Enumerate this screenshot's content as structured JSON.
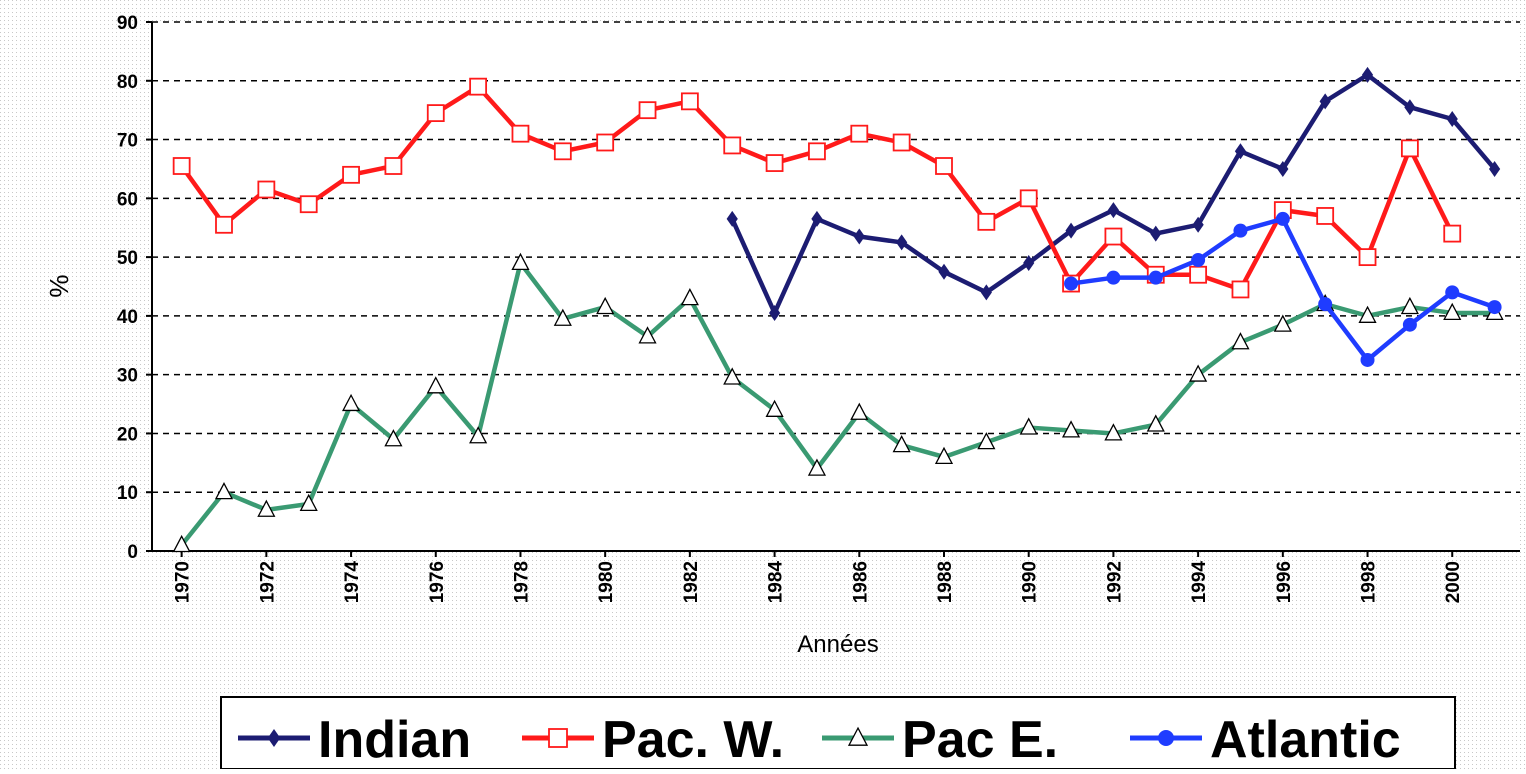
{
  "chart_data": {
    "type": "line",
    "x_label": "Années",
    "y_label": "%",
    "x": [
      1970,
      1971,
      1972,
      1973,
      1974,
      1975,
      1976,
      1977,
      1978,
      1979,
      1980,
      1981,
      1982,
      1983,
      1984,
      1985,
      1986,
      1987,
      1988,
      1989,
      1990,
      1991,
      1992,
      1993,
      1994,
      1995,
      1996,
      1997,
      1998,
      1999,
      2000,
      2001
    ],
    "xlim": [
      1969.3,
      2001.6
    ],
    "xticks": [
      1970,
      1972,
      1974,
      1976,
      1978,
      1980,
      1982,
      1984,
      1986,
      1988,
      1990,
      1992,
      1994,
      1996,
      1998,
      2000
    ],
    "ylim": [
      0,
      90
    ],
    "yticks": [
      0,
      10,
      20,
      30,
      40,
      50,
      60,
      70,
      80,
      90
    ],
    "grid": true,
    "legend": "bottom",
    "series": [
      {
        "name": "Indian",
        "color": "#1c1c72",
        "marker": "diamond",
        "values": [
          null,
          null,
          null,
          null,
          null,
          null,
          null,
          null,
          null,
          null,
          null,
          null,
          null,
          56.5,
          40.5,
          56.5,
          53.5,
          52.5,
          47.5,
          44,
          49,
          54.5,
          58,
          54,
          55.5,
          68,
          65,
          76.5,
          81,
          75.5,
          73.5,
          65
        ]
      },
      {
        "name": "Pac. W.",
        "color": "#ff1a1a",
        "marker": "square",
        "values": [
          65.5,
          55.5,
          61.5,
          59,
          64,
          65.5,
          74.5,
          79,
          71,
          68,
          69.5,
          75,
          76.5,
          69,
          66,
          68,
          71,
          69.5,
          65.5,
          56,
          60,
          45.5,
          53.5,
          47,
          47,
          44.5,
          58,
          57,
          50,
          68.5,
          54,
          null
        ]
      },
      {
        "name": "Pac E.",
        "color": "#3a9a72",
        "marker": "triangle",
        "values": [
          1,
          10,
          7,
          8,
          25,
          19,
          28,
          19.5,
          49,
          39.5,
          41.5,
          36.5,
          43,
          29.5,
          24,
          14,
          23.5,
          18,
          16,
          18.5,
          21,
          20.5,
          20,
          21.5,
          30,
          35.5,
          38.5,
          42,
          40,
          41.5,
          40.5,
          40.5
        ]
      },
      {
        "name": "Atlantic",
        "color": "#1f3cff",
        "marker": "circle",
        "values": [
          null,
          null,
          null,
          null,
          null,
          null,
          null,
          null,
          null,
          null,
          null,
          null,
          null,
          null,
          null,
          null,
          null,
          null,
          null,
          null,
          null,
          45.5,
          46.5,
          46.5,
          49.5,
          54.5,
          56.5,
          42,
          32.5,
          38.5,
          44,
          41.5
        ]
      }
    ]
  }
}
